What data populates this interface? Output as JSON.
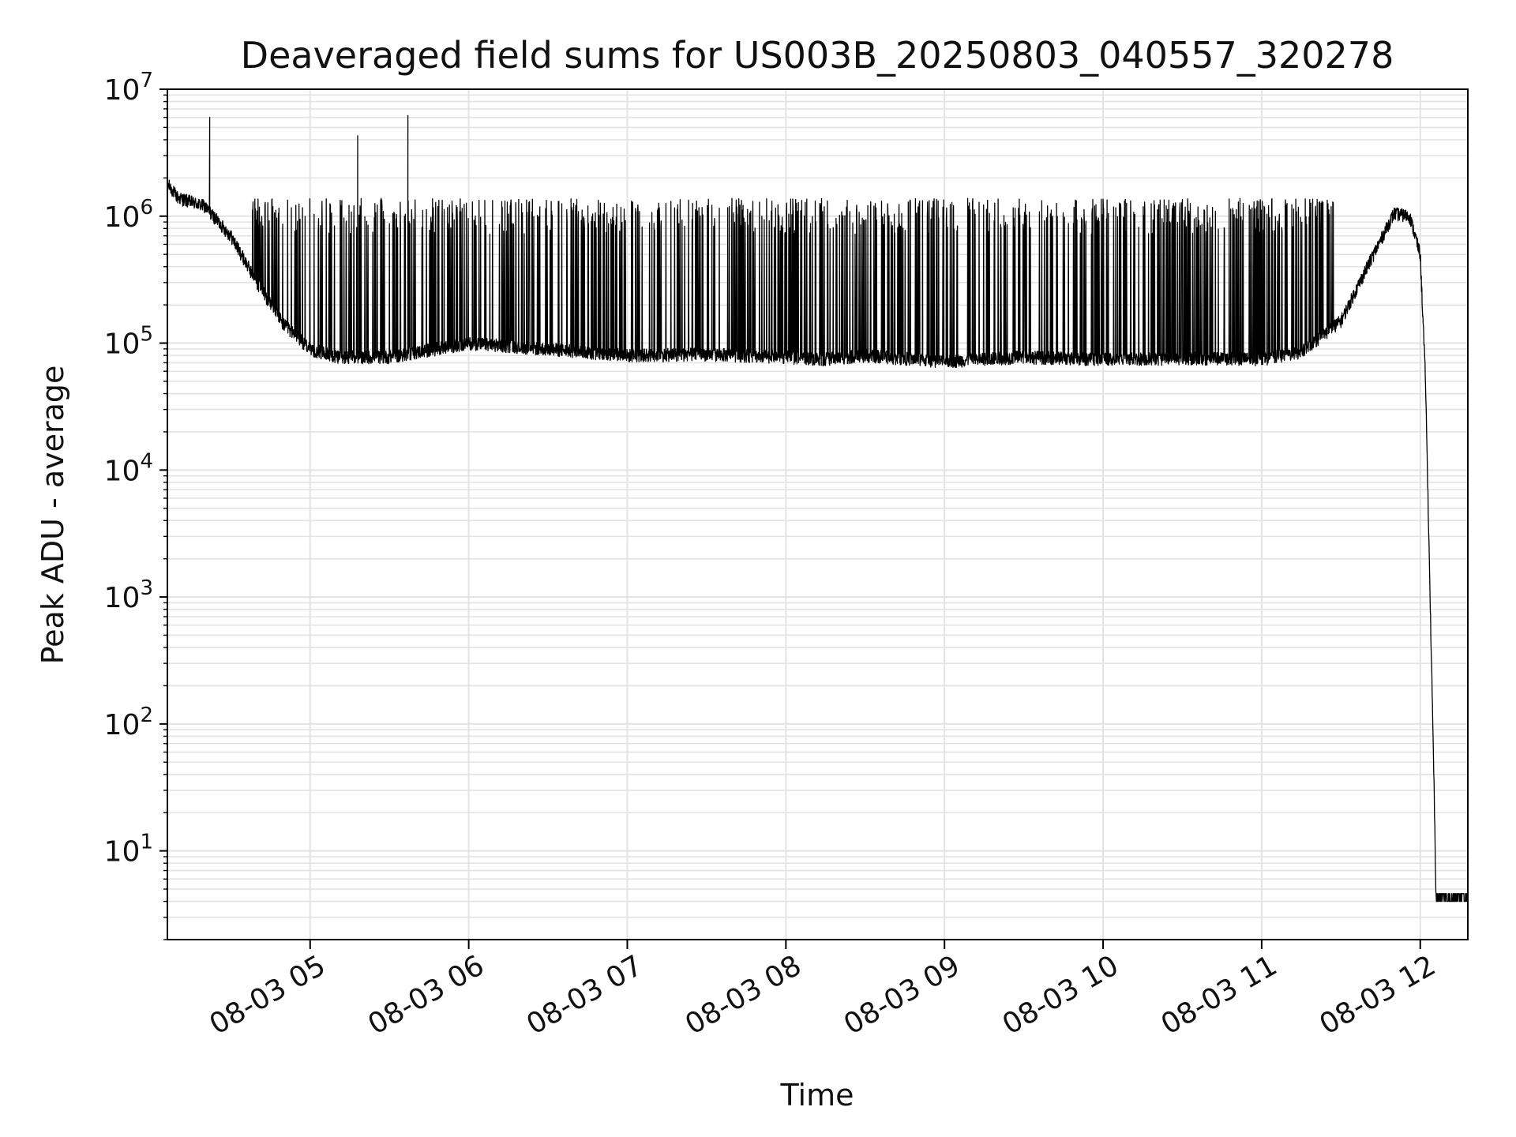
{
  "chart_data": {
    "type": "line",
    "title": "Deaveraged field sums for US003B_20250803_040557_320278",
    "xlabel": "Time",
    "ylabel": "Peak ADU - average",
    "yscale": "log",
    "ylim": [
      2,
      10000000
    ],
    "xlim": [
      "08-03 04:06",
      "08-03 12:18"
    ],
    "grid": true,
    "x_tick_labels": [
      "08-03 05",
      "08-03 06",
      "08-03 07",
      "08-03 08",
      "08-03 09",
      "08-03 10",
      "08-03 11",
      "08-03 12"
    ],
    "x_tick_values": [
      "08-03 05:00",
      "08-03 06:00",
      "08-03 07:00",
      "08-03 08:00",
      "08-03 09:00",
      "08-03 10:00",
      "08-03 11:00",
      "08-03 12:00"
    ],
    "y_ticks": [
      {
        "value": 10,
        "base": "10",
        "exp": "1"
      },
      {
        "value": 100,
        "base": "10",
        "exp": "2"
      },
      {
        "value": 1000,
        "base": "10",
        "exp": "3"
      },
      {
        "value": 10000,
        "base": "10",
        "exp": "4"
      },
      {
        "value": 100000,
        "base": "10",
        "exp": "5"
      },
      {
        "value": 1000000,
        "base": "10",
        "exp": "6"
      },
      {
        "value": 10000000,
        "base": "10",
        "exp": "7"
      }
    ],
    "series": [
      {
        "color": "#000000",
        "baseline_points": [
          [
            "08-03 04:06",
            1800000
          ],
          [
            "08-03 04:10",
            1400000
          ],
          [
            "08-03 04:20",
            1200000
          ],
          [
            "08-03 04:30",
            700000
          ],
          [
            "08-03 04:40",
            300000
          ],
          [
            "08-03 04:50",
            140000
          ],
          [
            "08-03 05:00",
            90000
          ],
          [
            "08-03 05:10",
            78000
          ],
          [
            "08-03 05:30",
            78000
          ],
          [
            "08-03 06:00",
            100000
          ],
          [
            "08-03 06:15",
            95000
          ],
          [
            "08-03 06:30",
            90000
          ],
          [
            "08-03 07:00",
            80000
          ],
          [
            "08-03 07:30",
            82000
          ],
          [
            "08-03 08:00",
            78000
          ],
          [
            "08-03 08:15",
            75000
          ],
          [
            "08-03 08:30",
            80000
          ],
          [
            "08-03 09:00",
            72000
          ],
          [
            "08-03 09:30",
            78000
          ],
          [
            "08-03 10:00",
            75000
          ],
          [
            "08-03 10:30",
            76000
          ],
          [
            "08-03 11:00",
            75000
          ],
          [
            "08-03 11:15",
            85000
          ],
          [
            "08-03 11:30",
            150000
          ],
          [
            "08-03 11:40",
            400000
          ],
          [
            "08-03 11:50",
            1050000
          ],
          [
            "08-03 11:56",
            1000000
          ],
          [
            "08-03 12:00",
            500000
          ],
          [
            "08-03 12:02",
            50000
          ],
          [
            "08-03 12:05",
            55
          ],
          [
            "08-03 12:06",
            4
          ],
          [
            "08-03 12:18",
            4
          ]
        ],
        "spike_level": 1200000,
        "burst_spikes": [
          [
            "08-03 04:22",
            6000000
          ],
          [
            "08-03 05:18",
            4300000
          ],
          [
            "08-03 05:37",
            6200000
          ]
        ]
      }
    ]
  }
}
